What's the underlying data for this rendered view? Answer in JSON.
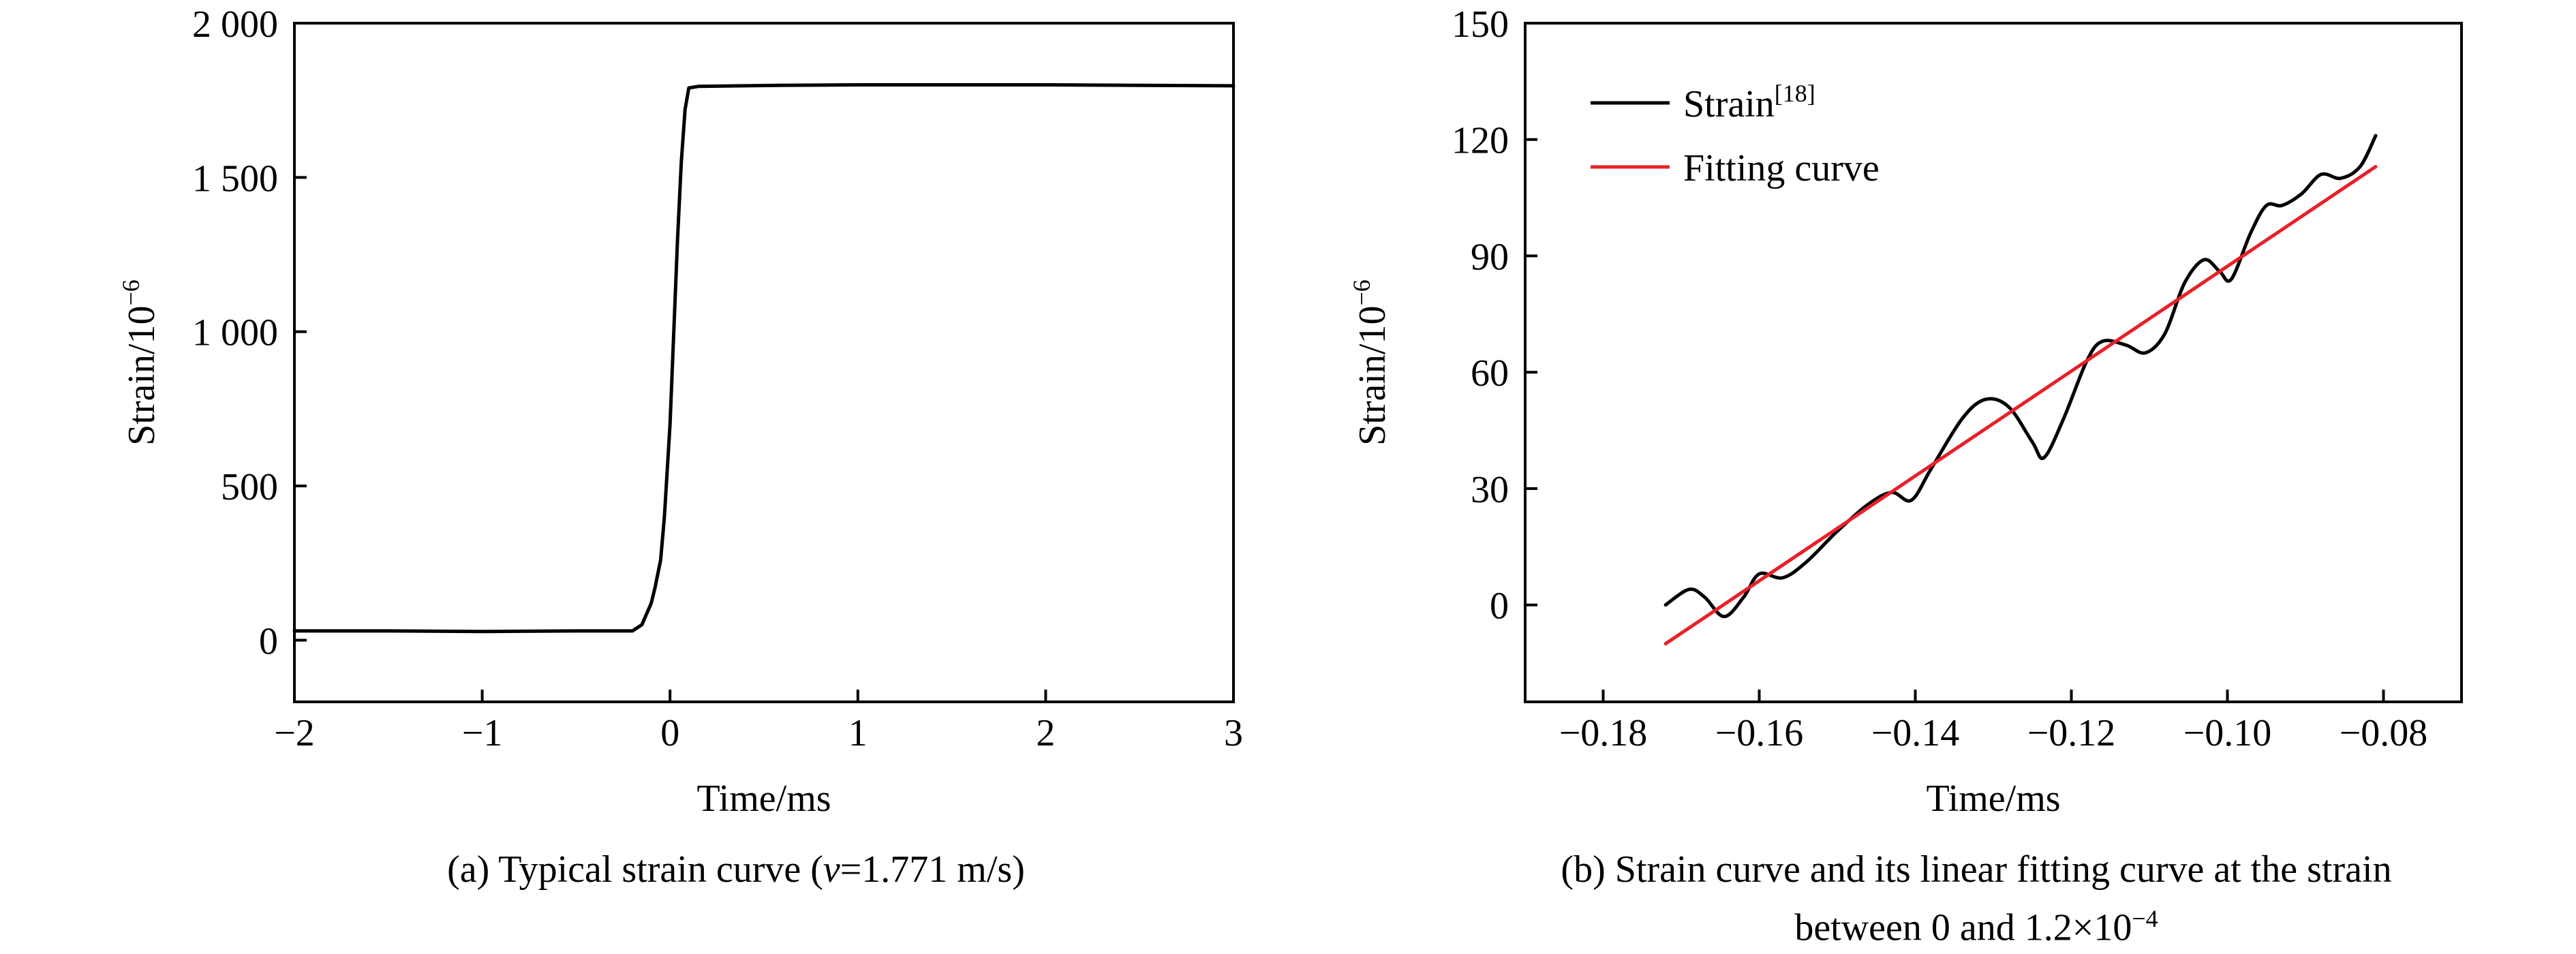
{
  "charts": [
    {
      "caption": "(a) Typical strain curve (",
      "caption_var": "v",
      "caption_rest": "=1.771 m/s)",
      "xlabel": "Time/ms",
      "ylabel_base": "Strain/10",
      "ylabel_exp": "−6",
      "xticks": [
        {
          "v": -2,
          "label": "−2"
        },
        {
          "v": -1,
          "label": "−1"
        },
        {
          "v": 0,
          "label": "0"
        },
        {
          "v": 1,
          "label": "1"
        },
        {
          "v": 2,
          "label": "2"
        },
        {
          "v": 3,
          "label": "3"
        }
      ],
      "yticks": [
        {
          "v": 0,
          "label": "0"
        },
        {
          "v": 500,
          "label": "500"
        },
        {
          "v": 1000,
          "label": "1 000"
        },
        {
          "v": 1500,
          "label": "1 500"
        },
        {
          "v": 2000,
          "label": "2 000"
        }
      ]
    },
    {
      "caption_line1": "(b) Strain curve and its linear fitting curve at the strain",
      "caption_line2_pre": "between 0 and 1.2×10",
      "caption_line2_exp": "−4",
      "xlabel": "Time/ms",
      "ylabel_base": "Strain/10",
      "ylabel_exp": "−6",
      "xticks": [
        {
          "v": -0.18,
          "label": "−0.18"
        },
        {
          "v": -0.16,
          "label": "−0.16"
        },
        {
          "v": -0.14,
          "label": "−0.14"
        },
        {
          "v": -0.12,
          "label": "−0.12"
        },
        {
          "v": -0.1,
          "label": "−0.10"
        },
        {
          "v": -0.08,
          "label": "−0.08"
        }
      ],
      "yticks": [
        {
          "v": 0,
          "label": "0"
        },
        {
          "v": 30,
          "label": "30"
        },
        {
          "v": 60,
          "label": "60"
        },
        {
          "v": 90,
          "label": "90"
        },
        {
          "v": 120,
          "label": "120"
        },
        {
          "v": 150,
          "label": "150"
        }
      ],
      "legend": [
        {
          "name": "Strain",
          "sup": "[18]",
          "color": "#000000"
        },
        {
          "name": "Fitting curve",
          "sup": "",
          "color": "#e8202a"
        }
      ]
    }
  ],
  "chart_data": [
    {
      "type": "line",
      "xlim": [
        -2,
        3
      ],
      "ylim": [
        -200,
        2000
      ],
      "grid": false,
      "series": [
        {
          "color": "#000000",
          "x": [
            -2.0,
            -1.5,
            -1.0,
            -0.5,
            -0.2,
            -0.15,
            -0.1,
            -0.08,
            -0.05,
            -0.03,
            0.0,
            0.02,
            0.04,
            0.06,
            0.08,
            0.1,
            0.15,
            0.5,
            1.0,
            2.0,
            3.0
          ],
          "y": [
            30,
            30,
            28,
            30,
            30,
            50,
            120,
            170,
            260,
            400,
            700,
            1000,
            1300,
            1550,
            1720,
            1790,
            1795,
            1798,
            1800,
            1800,
            1797
          ]
        }
      ]
    },
    {
      "type": "line",
      "xlim": [
        -0.19,
        -0.07
      ],
      "ylim": [
        -25,
        150
      ],
      "grid": false,
      "legend_position": "top-left",
      "series": [
        {
          "name": "Strain",
          "color": "#000000",
          "x": [
            -0.172,
            -0.169,
            -0.167,
            -0.1645,
            -0.162,
            -0.16,
            -0.157,
            -0.154,
            -0.15,
            -0.146,
            -0.143,
            -0.1405,
            -0.138,
            -0.134,
            -0.131,
            -0.128,
            -0.125,
            -0.1235,
            -0.121,
            -0.118,
            -0.116,
            -0.113,
            -0.1105,
            -0.108,
            -0.1055,
            -0.103,
            -0.101,
            -0.0995,
            -0.097,
            -0.095,
            -0.093,
            -0.0905,
            -0.088,
            -0.0855,
            -0.083,
            -0.081
          ],
          "y": [
            0,
            4,
            2,
            -3,
            2,
            8,
            7,
            11,
            19,
            26,
            29,
            27,
            35,
            48,
            53,
            51,
            42,
            38,
            48,
            63,
            68,
            67,
            65,
            70,
            83,
            89,
            86,
            84,
            96,
            103,
            103,
            106,
            111,
            110,
            113,
            121
          ]
        },
        {
          "name": "Fitting curve",
          "color": "#e8202a",
          "x": [
            -0.172,
            -0.081
          ],
          "y": [
            -10,
            113
          ]
        }
      ]
    }
  ]
}
